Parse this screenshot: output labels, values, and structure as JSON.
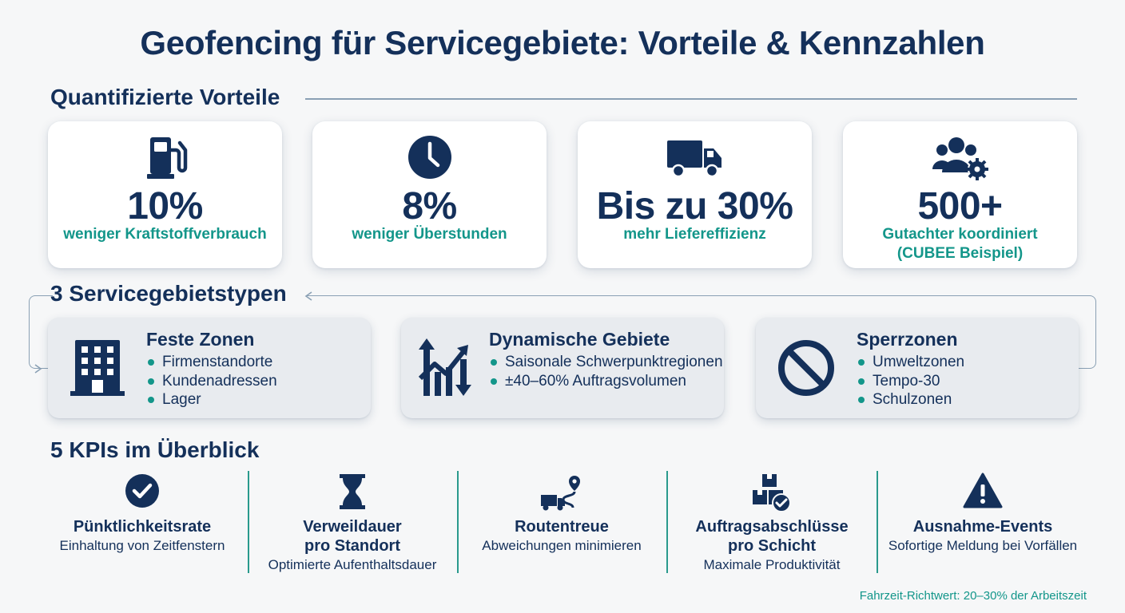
{
  "title": "Geofencing für Servicegebiete: Vorteile & Kennzahlen",
  "sections": {
    "benefits": "Quantifizierte Vorteile",
    "area_types": "3 Servicegebietstypen",
    "kpis": "5 KPIs im Überblick"
  },
  "benefits": [
    {
      "icon": "fuel-pump-icon",
      "value": "10%",
      "label": "weniger Kraftstoffverbrauch"
    },
    {
      "icon": "clock-icon",
      "value": "8%",
      "label": "weniger Überstunden"
    },
    {
      "icon": "delivery-truck-icon",
      "value": "Bis zu 30%",
      "label": "mehr Liefereffizienz"
    },
    {
      "icon": "team-settings-icon",
      "value": "500+",
      "label": "Gutachter koordiniert",
      "label2": "(CUBEE Beispiel)"
    }
  ],
  "area_types": [
    {
      "icon": "building-icon",
      "title": "Feste Zonen",
      "items": [
        "Firmenstandorte",
        "Kundenadressen",
        "Lager"
      ]
    },
    {
      "icon": "trend-arrows-icon",
      "title": "Dynamische Gebiete",
      "items": [
        "Saisonale Schwerpunktregionen",
        "±40–60% Auftragsvolumen"
      ]
    },
    {
      "icon": "prohibited-icon",
      "title": "Sperrzonen",
      "items": [
        "Umweltzonen",
        "Tempo-30",
        "Schulzonen"
      ]
    }
  ],
  "kpis": [
    {
      "icon": "checkmark-circle-icon",
      "title": "Pünktlichkeitsrate",
      "description": "Einhaltung von Zeitfenstern"
    },
    {
      "icon": "hourglass-icon",
      "title": "Verweildauer",
      "title2": "pro Standort",
      "description": "Optimierte Aufenthaltsdauer"
    },
    {
      "icon": "route-truck-icon",
      "title": "Routentreue",
      "description": "Abweichungen minimieren"
    },
    {
      "icon": "boxes-check-icon",
      "title": "Auftragsabschlüsse",
      "title2": "pro Schicht",
      "description": "Maximale Produktivität"
    },
    {
      "icon": "warning-icon",
      "title": "Ausnahme-Events",
      "description": "Sofortige Meldung bei Vorfällen"
    }
  ],
  "footnote": "Fahrzeit-Richtwert: 20–30% der Arbeitszeit",
  "colors": {
    "navy": "#14305a",
    "teal": "#13968a",
    "card_gray": "#e8ebef",
    "background": "#f6f7f8"
  }
}
